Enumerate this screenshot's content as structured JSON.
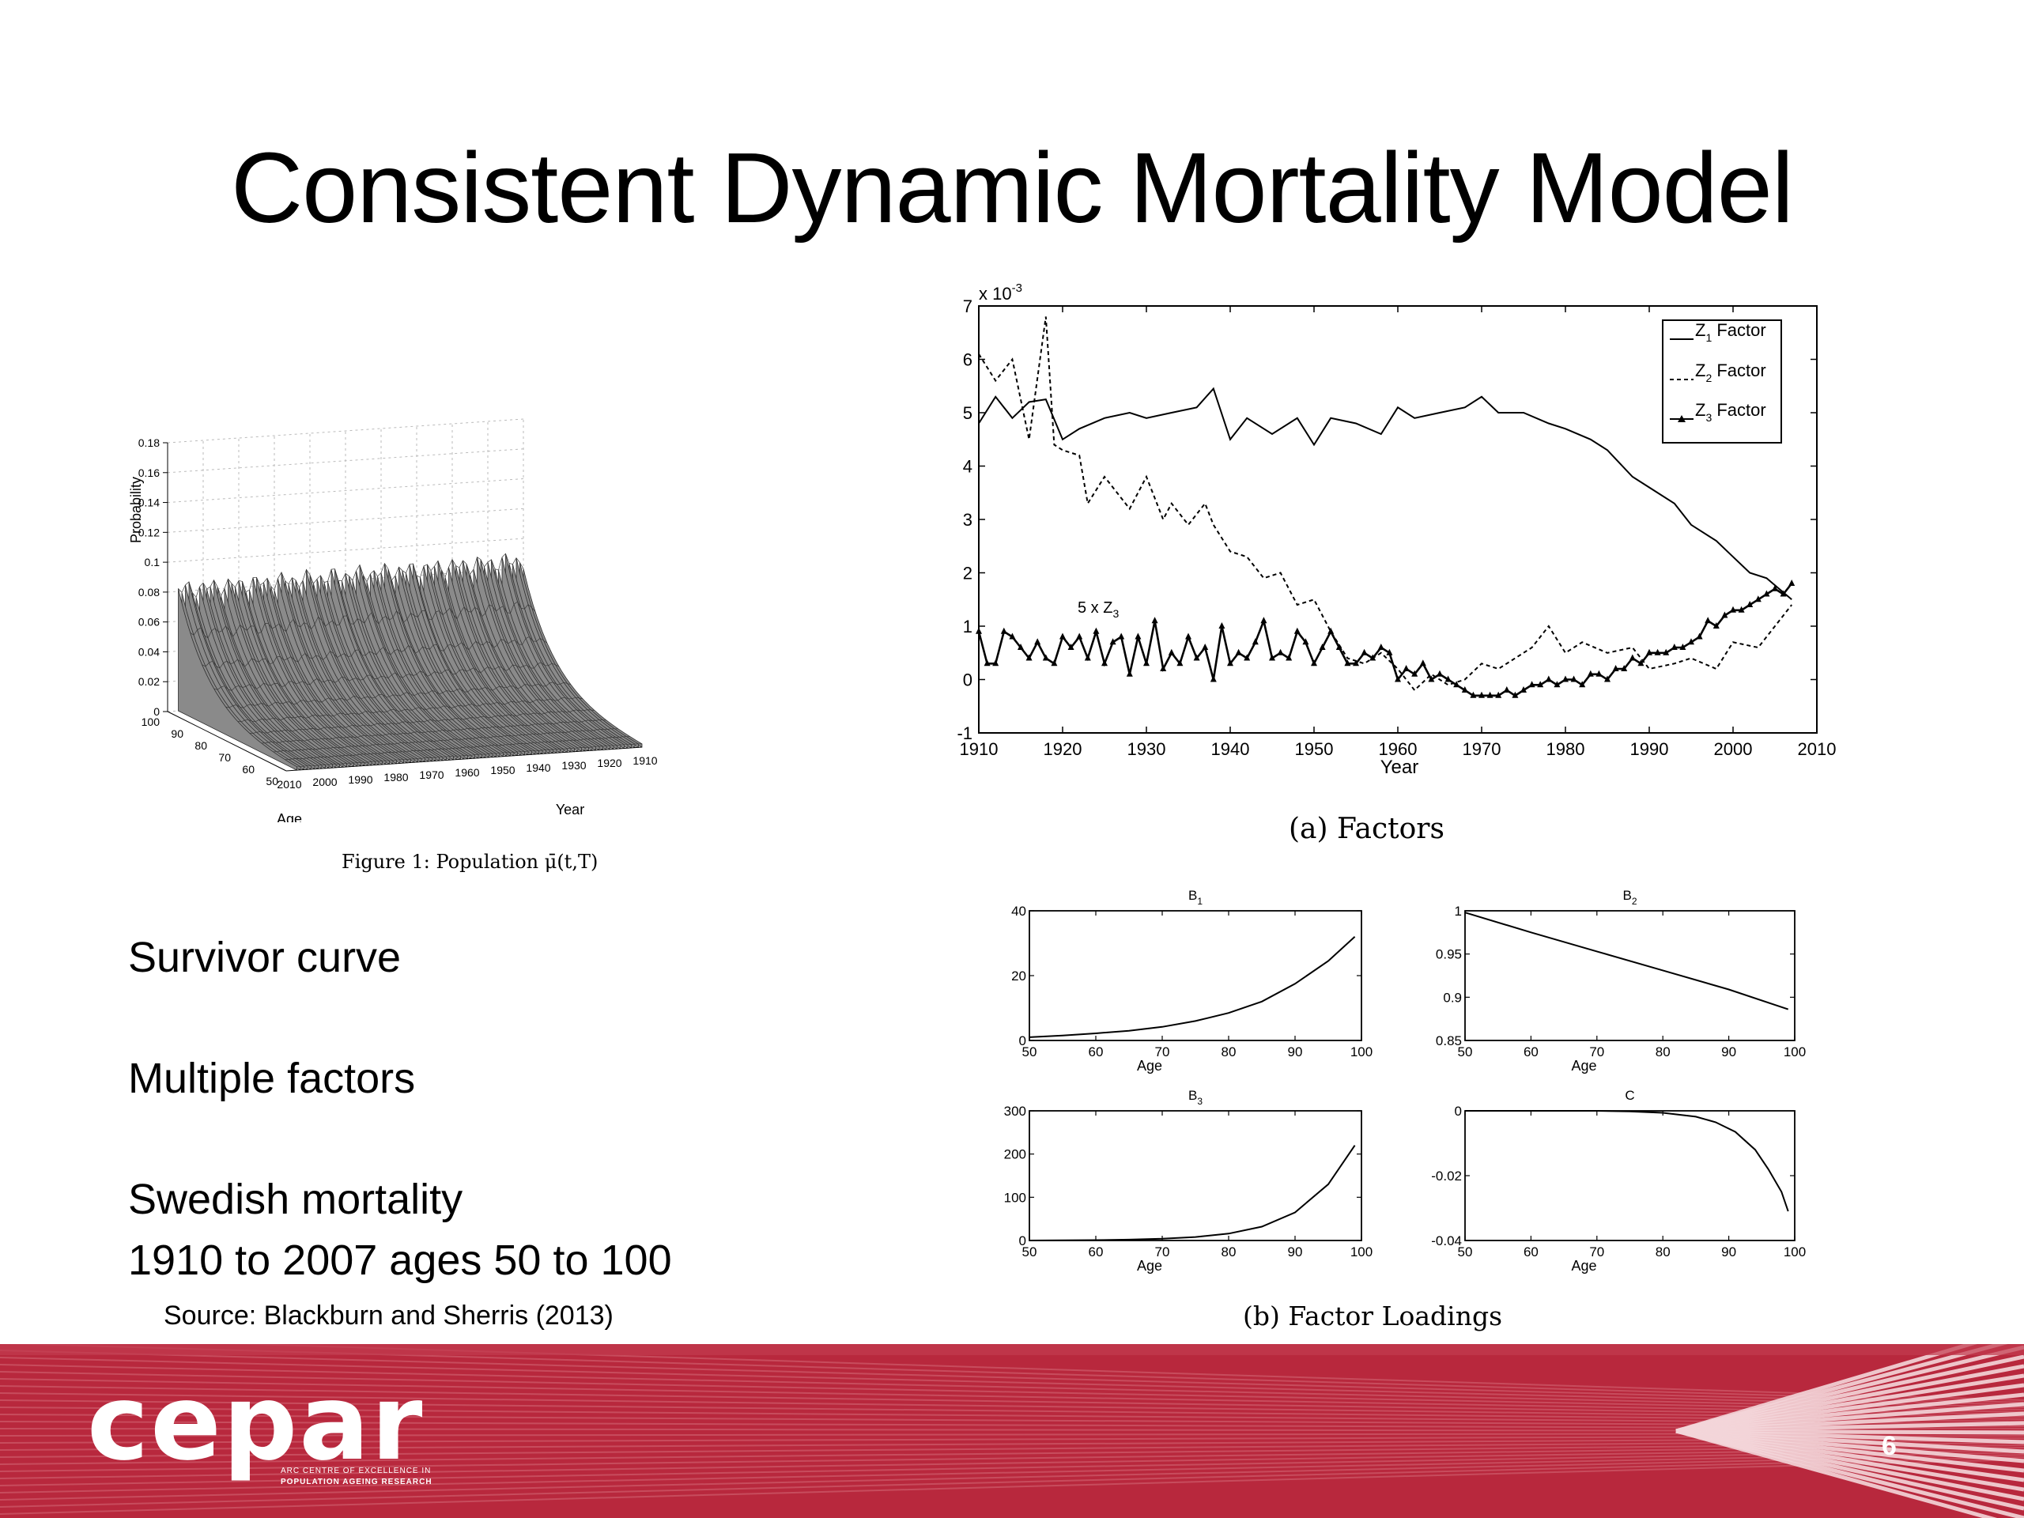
{
  "slide": {
    "title": "Consistent Dynamic Mortality Model",
    "bullets": [
      "Survivor curve",
      "Multiple factors",
      "Swedish mortality",
      "1910 to 2007 ages 50 to 100"
    ],
    "source": "Source: Blackburn and Sherris (2013)",
    "page_number": "6",
    "logo_text": "cepar",
    "logo_subtext_1": "ARC CENTRE OF EXCELLENCE IN",
    "logo_subtext_2": "POPULATION AGEING RESEARCH",
    "colors": {
      "footer_red": "#b8283d",
      "footer_light": "#d46b78",
      "text": "#000000"
    }
  },
  "chart_data": [
    {
      "type": "surface",
      "caption": "Figure 1: Population μ̄(t,T)",
      "zlabel": "Probability",
      "xlabel": "Age",
      "ylabel": "Year",
      "z_ticks": [
        "0",
        "0.02",
        "0.04",
        "0.06",
        "0.08",
        "0.1",
        "0.12",
        "0.14",
        "0.16",
        "0.18"
      ],
      "age_ticks": [
        "100",
        "90",
        "80",
        "70",
        "60",
        "50"
      ],
      "year_ticks": [
        "2010",
        "2000",
        "1990",
        "1980",
        "1970",
        "1960",
        "1950",
        "1940",
        "1930",
        "1920",
        "1910"
      ],
      "zlim": [
        0,
        0.18
      ],
      "age_range": [
        50,
        100
      ],
      "year_range": [
        1910,
        2007
      ]
    },
    {
      "type": "line",
      "caption": "(a) Factors",
      "xlabel": "Year",
      "y_multiplier": "x 10",
      "y_exponent": "-3",
      "annotation": "5 x Z",
      "annotation_sub": "3",
      "xlim": [
        1910,
        2010
      ],
      "ylim": [
        -1,
        7
      ],
      "x_ticks": [
        "1910",
        "1920",
        "1930",
        "1940",
        "1950",
        "1960",
        "1970",
        "1980",
        "1990",
        "2000",
        "2010"
      ],
      "y_ticks": [
        "-1",
        "0",
        "1",
        "2",
        "3",
        "4",
        "5",
        "6",
        "7"
      ],
      "legend_position": "top-right",
      "legend": [
        {
          "prefix": "Z",
          "sub": "1",
          "suffix": " Factor"
        },
        {
          "prefix": "Z",
          "sub": "2",
          "suffix": " Factor"
        },
        {
          "prefix": "Z",
          "sub": "3",
          "suffix": " Factor"
        }
      ],
      "series": [
        {
          "name": "Z1 Factor",
          "style": "solid",
          "x": [
            1910,
            1912,
            1914,
            1916,
            1918,
            1920,
            1922,
            1925,
            1928,
            1930,
            1933,
            1936,
            1938,
            1940,
            1942,
            1945,
            1948,
            1950,
            1952,
            1955,
            1958,
            1960,
            1962,
            1965,
            1968,
            1970,
            1972,
            1975,
            1978,
            1980,
            1983,
            1985,
            1988,
            1990,
            1993,
            1995,
            1998,
            2000,
            2002,
            2004,
            2007
          ],
          "y": [
            4.8,
            5.3,
            4.9,
            5.2,
            5.25,
            4.5,
            4.7,
            4.9,
            5.0,
            4.9,
            5.0,
            5.1,
            5.45,
            4.5,
            4.9,
            4.6,
            4.9,
            4.4,
            4.9,
            4.8,
            4.6,
            5.1,
            4.9,
            5.0,
            5.1,
            5.3,
            5.0,
            5.0,
            4.8,
            4.7,
            4.5,
            4.3,
            3.8,
            3.6,
            3.3,
            2.9,
            2.6,
            2.3,
            2.0,
            1.9,
            1.5
          ]
        },
        {
          "name": "Z2 Factor",
          "style": "dashed",
          "x": [
            1910,
            1912,
            1914,
            1916,
            1918,
            1919,
            1920,
            1922,
            1923,
            1925,
            1927,
            1928,
            1930,
            1932,
            1933,
            1935,
            1937,
            1938,
            1940,
            1942,
            1944,
            1946,
            1948,
            1950,
            1952,
            1954,
            1956,
            1958,
            1960,
            1962,
            1964,
            1966,
            1968,
            1970,
            1972,
            1974,
            1976,
            1978,
            1980,
            1982,
            1985,
            1988,
            1990,
            1993,
            1995,
            1998,
            2000,
            2003,
            2005,
            2007
          ],
          "y": [
            6.1,
            5.6,
            6.0,
            4.5,
            6.8,
            4.4,
            4.3,
            4.2,
            3.3,
            3.8,
            3.4,
            3.2,
            3.8,
            3.0,
            3.3,
            2.9,
            3.3,
            2.9,
            2.4,
            2.3,
            1.9,
            2.0,
            1.4,
            1.5,
            0.9,
            0.4,
            0.3,
            0.5,
            0.2,
            -0.2,
            0.1,
            -0.1,
            0.0,
            0.3,
            0.2,
            0.4,
            0.6,
            1.0,
            0.5,
            0.7,
            0.5,
            0.6,
            0.2,
            0.3,
            0.4,
            0.2,
            0.7,
            0.6,
            1.0,
            1.4
          ]
        },
        {
          "name": "Z3 Factor",
          "style": "marker",
          "x": [
            1910,
            1911,
            1912,
            1913,
            1914,
            1915,
            1916,
            1917,
            1918,
            1919,
            1920,
            1921,
            1922,
            1923,
            1924,
            1925,
            1926,
            1927,
            1928,
            1929,
            1930,
            1931,
            1932,
            1933,
            1934,
            1935,
            1936,
            1937,
            1938,
            1939,
            1940,
            1941,
            1942,
            1943,
            1944,
            1945,
            1946,
            1947,
            1948,
            1949,
            1950,
            1951,
            1952,
            1953,
            1954,
            1955,
            1956,
            1957,
            1958,
            1959,
            1960,
            1961,
            1962,
            1963,
            1964,
            1965,
            1966,
            1967,
            1968,
            1969,
            1970,
            1971,
            1972,
            1973,
            1974,
            1975,
            1976,
            1977,
            1978,
            1979,
            1980,
            1981,
            1982,
            1983,
            1984,
            1985,
            1986,
            1987,
            1988,
            1989,
            1990,
            1991,
            1992,
            1993,
            1994,
            1995,
            1996,
            1997,
            1998,
            1999,
            2000,
            2001,
            2002,
            2003,
            2004,
            2005,
            2006,
            2007
          ],
          "y": [
            0.9,
            0.3,
            0.3,
            0.9,
            0.8,
            0.6,
            0.4,
            0.7,
            0.4,
            0.3,
            0.8,
            0.6,
            0.8,
            0.4,
            0.9,
            0.3,
            0.7,
            0.8,
            0.1,
            0.8,
            0.3,
            1.1,
            0.2,
            0.5,
            0.3,
            0.8,
            0.4,
            0.6,
            0.0,
            1.0,
            0.3,
            0.5,
            0.4,
            0.7,
            1.1,
            0.4,
            0.5,
            0.4,
            0.9,
            0.7,
            0.3,
            0.6,
            0.9,
            0.6,
            0.3,
            0.3,
            0.5,
            0.4,
            0.6,
            0.5,
            0.0,
            0.2,
            0.1,
            0.3,
            0.0,
            0.1,
            0.0,
            -0.1,
            -0.2,
            -0.3,
            -0.3,
            -0.3,
            -0.3,
            -0.2,
            -0.3,
            -0.2,
            -0.1,
            -0.1,
            0.0,
            -0.1,
            0.0,
            0.0,
            -0.1,
            0.1,
            0.1,
            0.0,
            0.2,
            0.2,
            0.4,
            0.3,
            0.5,
            0.5,
            0.5,
            0.6,
            0.6,
            0.7,
            0.8,
            1.1,
            1.0,
            1.2,
            1.3,
            1.3,
            1.4,
            1.5,
            1.6,
            1.7,
            1.6,
            1.8
          ]
        }
      ]
    },
    {
      "type": "line",
      "caption": "(b) Factor Loadings",
      "panels": [
        {
          "title": "B",
          "title_sub": "1",
          "xlabel": "Age",
          "xlim": [
            50,
            100
          ],
          "ylim": [
            0,
            40
          ],
          "x_ticks": [
            "50",
            "60",
            "70",
            "80",
            "90",
            "100"
          ],
          "y_ticks": [
            "0",
            "20",
            "40"
          ],
          "x": [
            50,
            55,
            60,
            65,
            70,
            75,
            80,
            85,
            90,
            95,
            99
          ],
          "y": [
            1.0,
            1.5,
            2.2,
            3.0,
            4.2,
            6.0,
            8.5,
            12.0,
            17.5,
            24.5,
            32.0
          ]
        },
        {
          "title": "B",
          "title_sub": "2",
          "xlabel": "Age",
          "xlim": [
            50,
            100
          ],
          "ylim": [
            0.85,
            1.0
          ],
          "x_ticks": [
            "50",
            "60",
            "70",
            "80",
            "90",
            "100"
          ],
          "y_ticks": [
            "0.85",
            "0.9",
            "0.95",
            "1"
          ],
          "x": [
            50,
            60,
            70,
            80,
            90,
            99
          ],
          "y": [
            0.998,
            0.975,
            0.953,
            0.931,
            0.909,
            0.886
          ]
        },
        {
          "title": "B",
          "title_sub": "3",
          "xlabel": "Age",
          "xlim": [
            50,
            100
          ],
          "ylim": [
            0,
            300
          ],
          "x_ticks": [
            "50",
            "60",
            "70",
            "80",
            "90",
            "100"
          ],
          "y_ticks": [
            "0",
            "100",
            "200",
            "300"
          ],
          "x": [
            50,
            55,
            60,
            65,
            70,
            75,
            80,
            85,
            90,
            95,
            99
          ],
          "y": [
            0,
            0.5,
            1,
            2,
            4,
            8,
            16,
            32,
            65,
            130,
            220
          ]
        },
        {
          "title": "C",
          "title_sub": "",
          "xlabel": "Age",
          "xlim": [
            50,
            100
          ],
          "ylim": [
            -0.04,
            0
          ],
          "x_ticks": [
            "50",
            "60",
            "70",
            "80",
            "90",
            "100"
          ],
          "y_ticks": [
            "-0.04",
            "-0.02",
            "0"
          ],
          "x": [
            50,
            60,
            70,
            75,
            80,
            85,
            88,
            91,
            94,
            96,
            98,
            99
          ],
          "y": [
            0,
            0,
            0,
            -0.0002,
            -0.0006,
            -0.0018,
            -0.0035,
            -0.0065,
            -0.012,
            -0.018,
            -0.025,
            -0.031
          ]
        }
      ]
    }
  ]
}
